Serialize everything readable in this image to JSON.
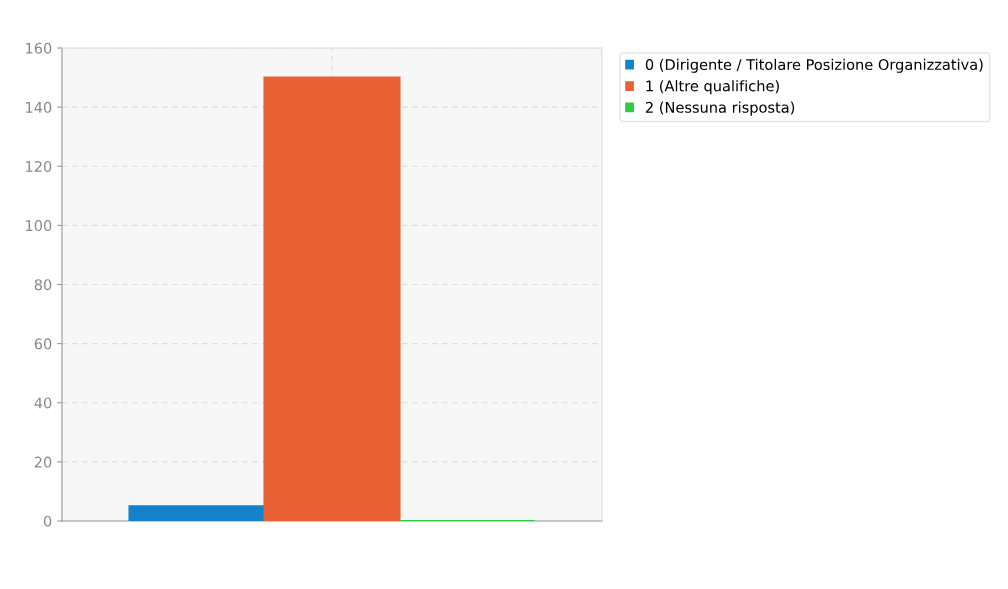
{
  "chart_data": {
    "type": "bar",
    "categories": [
      null
    ],
    "series": [
      {
        "name": "0 (Dirigente / Titolare Posizione Organizzativa)",
        "color": "#1581c9",
        "values": [
          5
        ]
      },
      {
        "name": "1 (Altre qualifiche)",
        "color": "#e86034",
        "values": [
          150
        ]
      },
      {
        "name": "2 (Nessuna risposta)",
        "color": "#2ecc40",
        "values": [
          0
        ]
      }
    ],
    "ylim": [
      0,
      160
    ],
    "yticks": [
      0,
      20,
      40,
      60,
      80,
      100,
      120,
      140,
      160
    ],
    "grid": true,
    "legend": "top right"
  }
}
